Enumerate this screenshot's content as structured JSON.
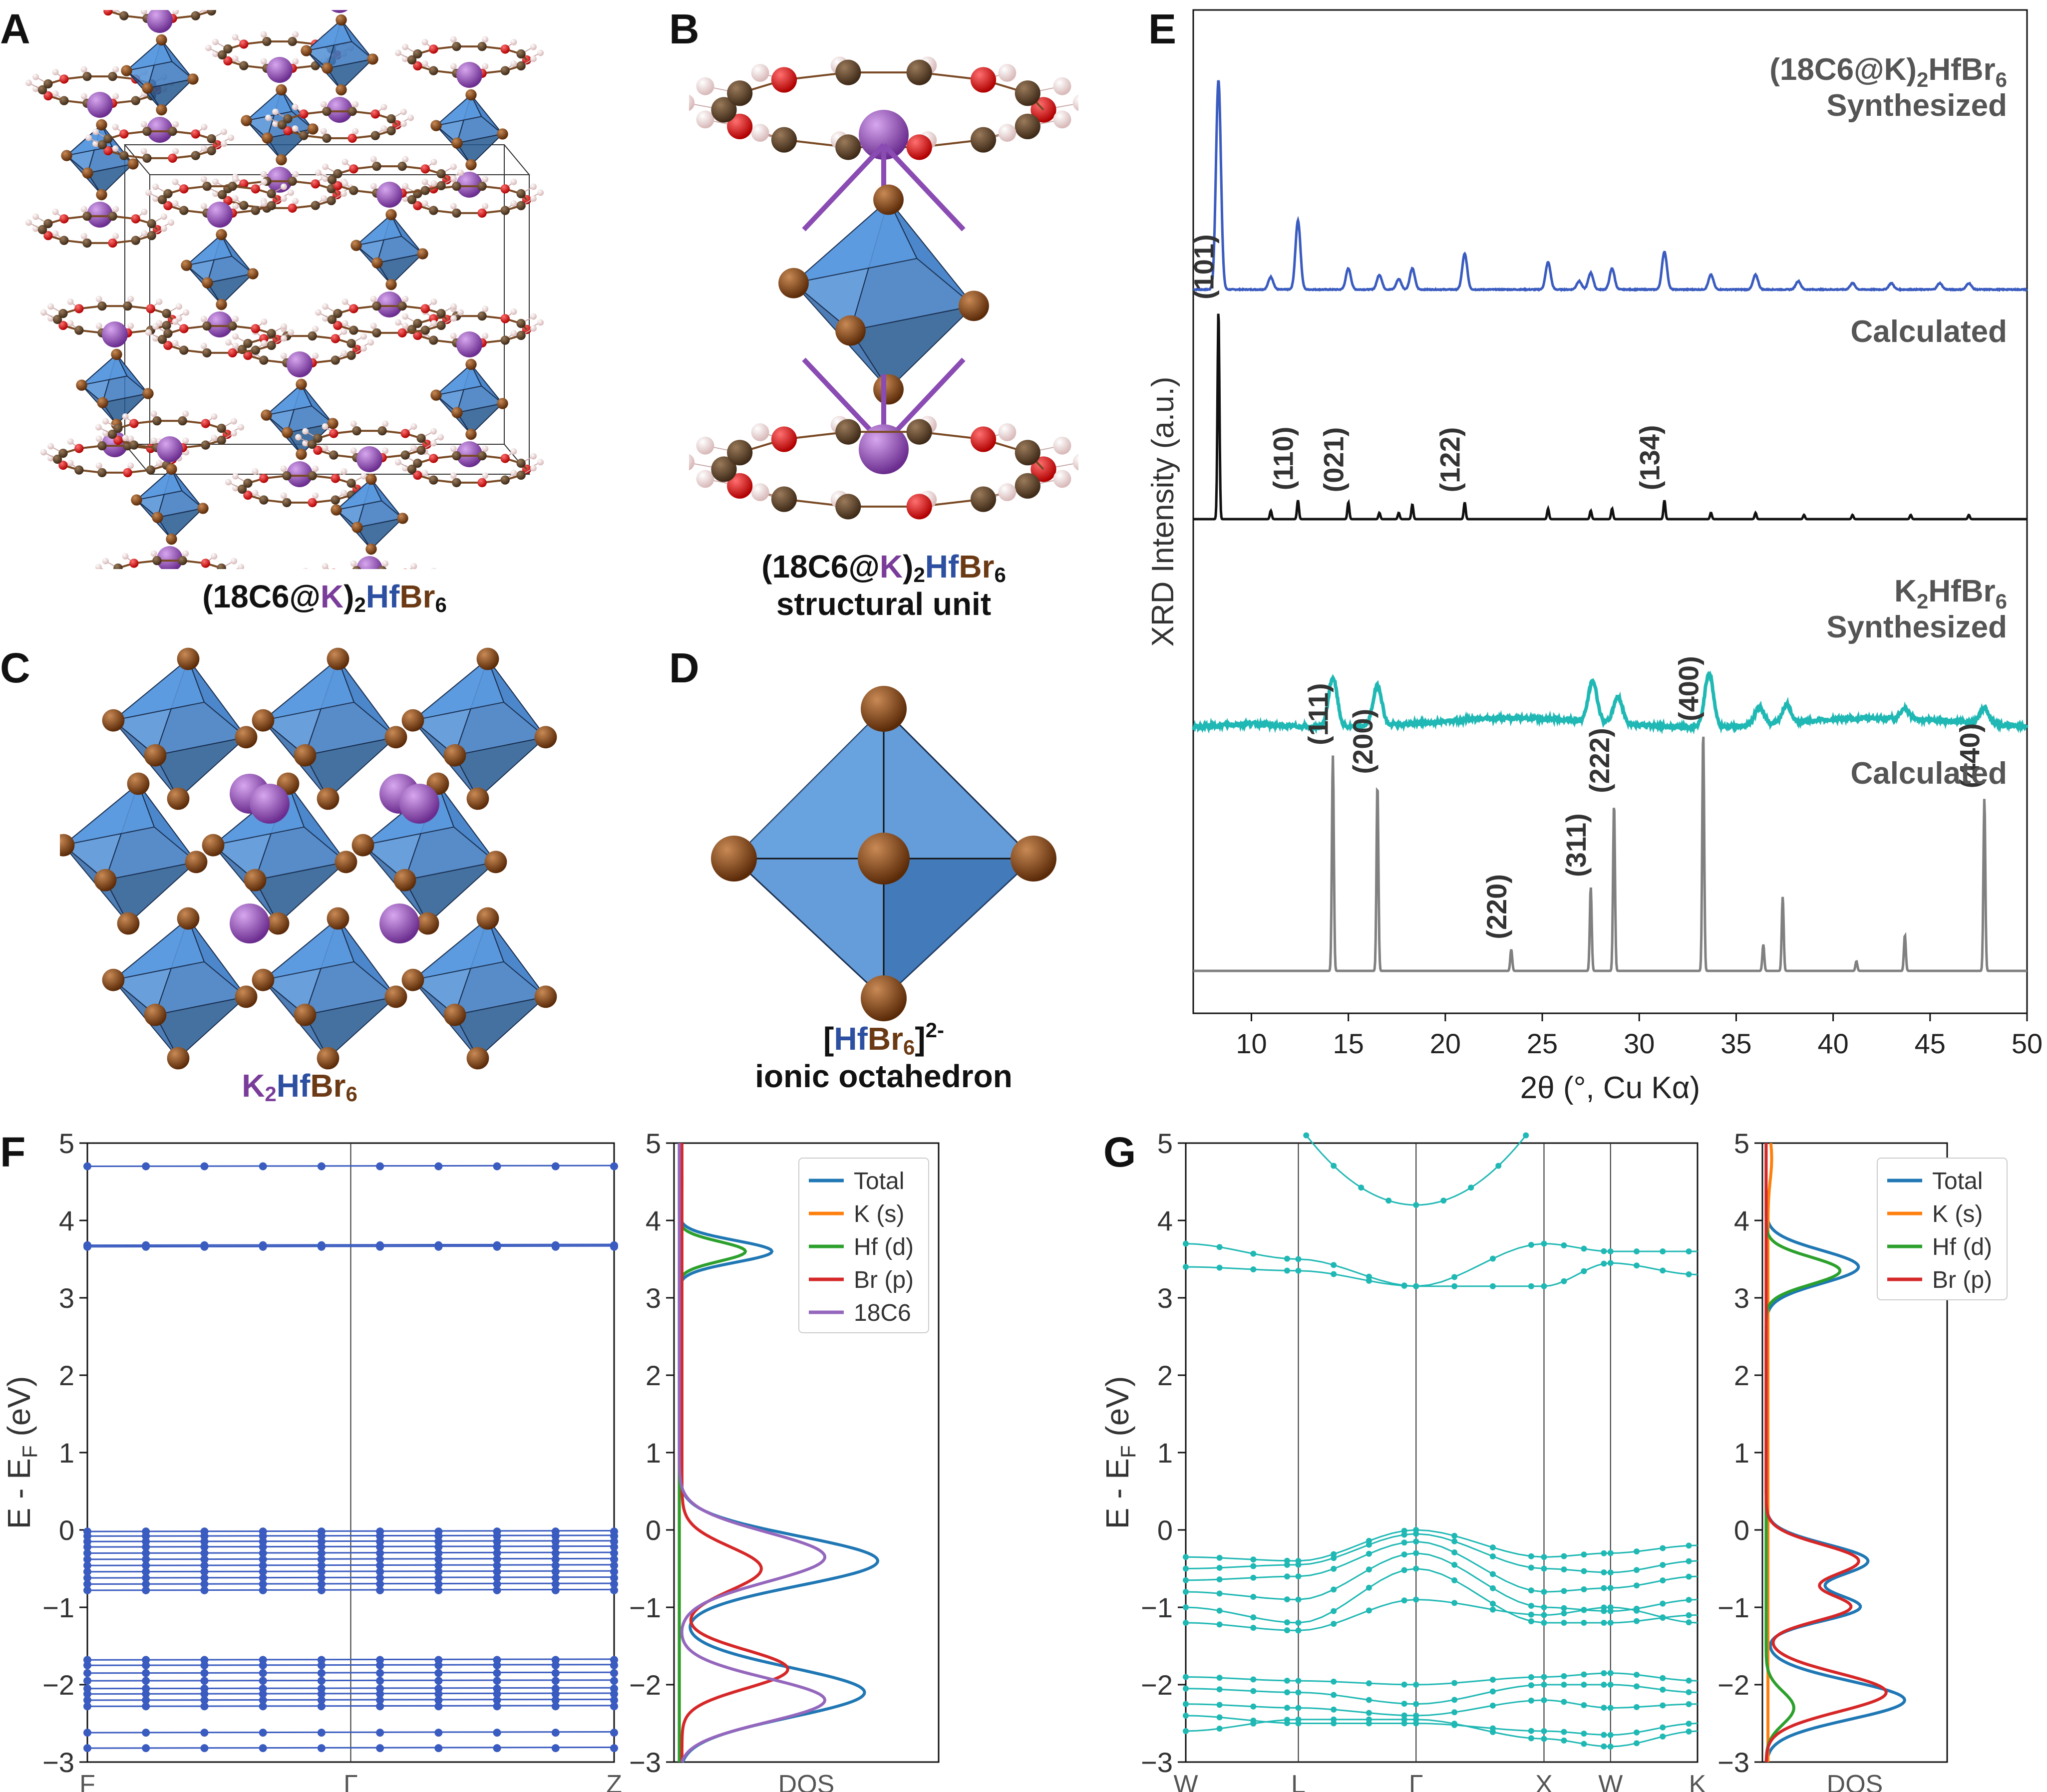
{
  "panels": {
    "A": {
      "letter": "A",
      "caption": {
        "p1": "(18C6@",
        "k": "K",
        "p2": ")",
        "sub": "2",
        "hf": "Hf",
        "br": "Br",
        "sub6": "6"
      }
    },
    "B": {
      "letter": "B",
      "caption": {
        "p1": "(18C6@",
        "k": "K",
        "p2": ")",
        "sub": "2",
        "hf": "Hf",
        "br": "Br",
        "sub6": "6",
        "line2": "structural unit"
      }
    },
    "C": {
      "letter": "C",
      "caption": {
        "k": "K",
        "sub": "2",
        "hf": "Hf",
        "br": "Br",
        "sub6": "6"
      }
    },
    "D": {
      "letter": "D",
      "caption": {
        "lb": "[",
        "hf": "Hf",
        "br": "Br",
        "sub6": "6",
        "rb": "]",
        "sup": "2-",
        "line2": "ionic octahedron"
      }
    },
    "E": {
      "letter": "E"
    },
    "F": {
      "letter": "F"
    },
    "G": {
      "letter": "G"
    }
  },
  "colors": {
    "blue_pattern": "#3a5bbf",
    "teal_pattern": "#20b8b4",
    "calc_black": "#111111",
    "calc_grey": "#808080",
    "total": "#1f77b4",
    "k_s": "#ff7f0e",
    "hf_d": "#2ca02c",
    "br_p": "#d62728",
    "c18c6": "#9467bd",
    "octahedron": "#3d7fc9",
    "bromine": "#7a4015",
    "potassium": "#8a4bb3"
  },
  "chart_data": [
    {
      "id": "E",
      "type": "line",
      "xlabel": "2θ (°, Cu Kα)",
      "ylabel": "XRD Intensity (a.u.)",
      "xlim": [
        7,
        50
      ],
      "xticks": [
        10,
        15,
        20,
        25,
        30,
        35,
        40,
        45,
        50
      ],
      "series": [
        {
          "label1": "(18C6@K)",
          "label_sub": "2",
          "label_rest": "HfBr",
          "label_sub2": "6",
          "label2": "Synthesized",
          "peaks": [
            [
              8.3,
              1.0
            ],
            [
              11.0,
              0.06
            ],
            [
              12.4,
              0.33
            ],
            [
              15.0,
              0.1
            ],
            [
              16.6,
              0.07
            ],
            [
              17.6,
              0.05
            ],
            [
              18.3,
              0.1
            ],
            [
              21.0,
              0.17
            ],
            [
              25.3,
              0.13
            ],
            [
              26.9,
              0.04
            ],
            [
              27.5,
              0.08
            ],
            [
              28.6,
              0.1
            ],
            [
              31.3,
              0.18
            ],
            [
              33.7,
              0.07
            ],
            [
              36.0,
              0.07
            ],
            [
              38.2,
              0.04
            ],
            [
              41.0,
              0.03
            ],
            [
              43.0,
              0.03
            ],
            [
              45.5,
              0.03
            ],
            [
              47.0,
              0.03
            ]
          ]
        },
        {
          "label1": "Calculated",
          "peaks": [
            [
              8.3,
              1.0
            ],
            [
              11.0,
              0.04
            ],
            [
              12.4,
              0.09
            ],
            [
              15.0,
              0.08
            ],
            [
              16.6,
              0.03
            ],
            [
              17.6,
              0.03
            ],
            [
              18.3,
              0.07
            ],
            [
              21.0,
              0.08
            ],
            [
              25.3,
              0.05
            ],
            [
              27.5,
              0.04
            ],
            [
              28.6,
              0.05
            ],
            [
              31.3,
              0.09
            ],
            [
              33.7,
              0.03
            ],
            [
              36.0,
              0.03
            ],
            [
              38.5,
              0.02
            ],
            [
              41.0,
              0.02
            ],
            [
              44.0,
              0.02
            ],
            [
              47.0,
              0.02
            ]
          ],
          "annotations": [
            [
              "(101)",
              8.3
            ],
            [
              "(110)",
              12.4
            ],
            [
              "(021)",
              15.0
            ],
            [
              "(122)",
              21.0
            ],
            [
              "(134)",
              31.3
            ]
          ]
        },
        {
          "label1": "K",
          "label_sub": "2",
          "label_rest": "HfBr",
          "label_sub2": "6",
          "label2": "Synthesized",
          "peaks": [
            [
              14.2,
              0.55
            ],
            [
              16.5,
              0.45
            ],
            [
              27.6,
              0.45
            ],
            [
              28.9,
              0.3
            ],
            [
              33.6,
              0.6
            ],
            [
              36.2,
              0.2
            ],
            [
              37.6,
              0.2
            ],
            [
              43.7,
              0.1
            ],
            [
              47.8,
              0.18
            ]
          ]
        },
        {
          "label1": "Calculated",
          "peaks": [
            [
              14.2,
              0.9
            ],
            [
              16.5,
              0.78
            ],
            [
              23.4,
              0.09
            ],
            [
              27.5,
              0.35
            ],
            [
              28.7,
              0.7
            ],
            [
              33.3,
              1.0
            ],
            [
              36.4,
              0.11
            ],
            [
              37.4,
              0.31
            ],
            [
              41.2,
              0.04
            ],
            [
              43.7,
              0.15
            ],
            [
              47.8,
              0.72
            ]
          ],
          "annotations": [
            [
              "(111)",
              14.2
            ],
            [
              "(200)",
              16.5
            ],
            [
              "(220)",
              23.4
            ],
            [
              "(311)",
              27.5
            ],
            [
              "(222)",
              28.7
            ],
            [
              "(400)",
              33.3
            ],
            [
              "(440)",
              47.8
            ]
          ]
        }
      ]
    },
    {
      "id": "F",
      "type": "line",
      "ylabel": "E - E",
      "ylabel_sub": "F",
      "ylabel_unit": " (eV)",
      "ylim": [
        -3,
        5
      ],
      "yticks": [
        5,
        4,
        3,
        2,
        1,
        0,
        -1,
        -2,
        -3
      ],
      "kpoints": [
        "F",
        "Γ",
        "Z"
      ],
      "bands": [
        4.7,
        3.66,
        3.68,
        -0.02,
        -0.08,
        -0.15,
        -0.22,
        -0.3,
        -0.38,
        -0.46,
        -0.54,
        -0.62,
        -0.7,
        -0.78,
        -1.68,
        -1.75,
        -1.85,
        -1.95,
        -2.05,
        -2.12,
        -2.2,
        -2.28,
        -2.62,
        -2.82
      ],
      "dos_xlabel": "DOS",
      "dos_legend": [
        "Total",
        "K (s)",
        "Hf (d)",
        "Br (p)",
        "18C6"
      ]
    },
    {
      "id": "G",
      "type": "line",
      "ylabel": "E - E",
      "ylabel_sub": "F",
      "ylabel_unit": " (eV)",
      "ylim": [
        -3,
        5
      ],
      "yticks": [
        5,
        4,
        3,
        2,
        1,
        0,
        -1,
        -2,
        -3
      ],
      "kpoints": [
        "W",
        "L",
        "Γ",
        "X",
        "W",
        "K"
      ],
      "dos_xlabel": "DOS",
      "dos_legend": [
        "Total",
        "K (s)",
        "Hf (d)",
        "Br (p)"
      ]
    }
  ]
}
